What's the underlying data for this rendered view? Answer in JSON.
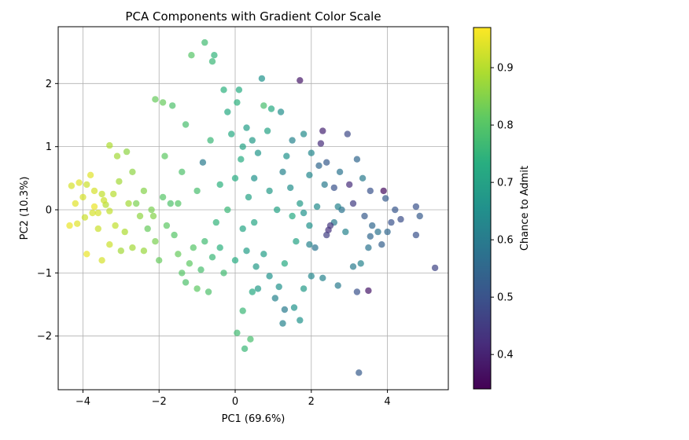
{
  "chart_data": {
    "type": "scatter",
    "title": "PCA Components with Gradient Color Scale",
    "xlabel": "PC1 (69.6%)",
    "ylabel": "PC2 (10.3%)",
    "xlim": [
      -4.65,
      5.6
    ],
    "ylim": [
      -2.85,
      2.9
    ],
    "xticks": [
      -4,
      -2,
      0,
      2,
      4
    ],
    "yticks": [
      -2,
      -1,
      0,
      1,
      2
    ],
    "grid": true,
    "colormap": "viridis",
    "marker_alpha": 0.7,
    "colorbar": {
      "label": "Chance to Admit",
      "range": [
        0.34,
        0.97
      ],
      "ticks": [
        0.4,
        0.5,
        0.6,
        0.7,
        0.8,
        0.9
      ]
    },
    "points": [
      [
        -4.3,
        0.38,
        0.93
      ],
      [
        -4.2,
        0.1,
        0.94
      ],
      [
        -4.1,
        0.43,
        0.94
      ],
      [
        -4.0,
        0.2,
        0.93
      ],
      [
        -3.9,
        0.4,
        0.92
      ],
      [
        -3.8,
        0.55,
        0.94
      ],
      [
        -3.7,
        0.3,
        0.93
      ],
      [
        -4.35,
        -0.25,
        0.95
      ],
      [
        -4.15,
        -0.22,
        0.94
      ],
      [
        -3.95,
        -0.12,
        0.92
      ],
      [
        -3.75,
        -0.05,
        0.93
      ],
      [
        -3.6,
        -0.3,
        0.92
      ],
      [
        -3.5,
        0.25,
        0.91
      ],
      [
        -3.4,
        0.08,
        0.9
      ],
      [
        -3.3,
        -0.02,
        0.91
      ],
      [
        -3.2,
        0.25,
        0.9
      ],
      [
        -3.05,
        0.45,
        0.88
      ],
      [
        -3.1,
        0.85,
        0.88
      ],
      [
        -3.3,
        1.02,
        0.89
      ],
      [
        -2.85,
        0.92,
        0.86
      ],
      [
        -2.9,
        -0.35,
        0.89
      ],
      [
        -3.0,
        -0.65,
        0.88
      ],
      [
        -3.3,
        -0.55,
        0.92
      ],
      [
        -3.5,
        -0.8,
        0.93
      ],
      [
        -3.9,
        -0.7,
        0.95
      ],
      [
        -2.7,
        -0.6,
        0.88
      ],
      [
        -2.5,
        -0.1,
        0.86
      ],
      [
        -2.4,
        0.3,
        0.85
      ],
      [
        -2.6,
        0.1,
        0.84
      ],
      [
        -2.3,
        -0.3,
        0.82
      ],
      [
        -2.2,
        0.0,
        0.84
      ],
      [
        -2.1,
        -0.5,
        0.84
      ],
      [
        -2.0,
        -0.8,
        0.82
      ],
      [
        -1.9,
        0.2,
        0.8
      ],
      [
        -1.8,
        -0.25,
        0.81
      ],
      [
        -1.7,
        0.1,
        0.79
      ],
      [
        -1.6,
        -0.4,
        0.8
      ],
      [
        -1.5,
        -0.7,
        0.82
      ],
      [
        -1.4,
        -1.0,
        0.8
      ],
      [
        -1.3,
        -1.15,
        0.79
      ],
      [
        -1.2,
        -0.85,
        0.81
      ],
      [
        -1.1,
        -0.6,
        0.8
      ],
      [
        -1.0,
        -1.25,
        0.81
      ],
      [
        -0.9,
        -0.95,
        0.78
      ],
      [
        -0.8,
        -0.5,
        0.77
      ],
      [
        -0.7,
        -1.3,
        0.79
      ],
      [
        -0.6,
        -0.75,
        0.76
      ],
      [
        -0.5,
        -0.2,
        0.75
      ],
      [
        -0.4,
        -0.6,
        0.74
      ],
      [
        -0.3,
        -1.0,
        0.77
      ],
      [
        -1.9,
        1.7,
        0.82
      ],
      [
        -1.65,
        1.65,
        0.79
      ],
      [
        -2.1,
        1.75,
        0.82
      ],
      [
        -1.3,
        1.35,
        0.78
      ],
      [
        -0.8,
        2.65,
        0.77
      ],
      [
        -1.15,
        2.45,
        0.8
      ],
      [
        -0.6,
        2.35,
        0.76
      ],
      [
        -0.55,
        2.45,
        0.75
      ],
      [
        -0.3,
        1.9,
        0.74
      ],
      [
        -0.2,
        1.55,
        0.72
      ],
      [
        0.05,
        1.7,
        0.74
      ],
      [
        0.1,
        1.9,
        0.73
      ],
      [
        -0.1,
        1.2,
        0.72
      ],
      [
        0.2,
        1.0,
        0.7
      ],
      [
        0.3,
        1.3,
        0.69
      ],
      [
        0.45,
        1.1,
        0.68
      ],
      [
        0.6,
        0.9,
        0.67
      ],
      [
        0.75,
        1.65,
        0.78
      ],
      [
        0.95,
        1.6,
        0.72
      ],
      [
        0.5,
        0.5,
        0.66
      ],
      [
        0.35,
        0.2,
        0.7
      ],
      [
        0.2,
        -0.3,
        0.71
      ],
      [
        0.0,
        -0.8,
        0.73
      ],
      [
        0.3,
        -0.65,
        0.69
      ],
      [
        0.55,
        -0.9,
        0.68
      ],
      [
        0.45,
        -1.3,
        0.72
      ],
      [
        0.2,
        -1.6,
        0.76
      ],
      [
        0.05,
        -1.95,
        0.77
      ],
      [
        0.4,
        -2.05,
        0.78
      ],
      [
        0.25,
        -2.2,
        0.76
      ],
      [
        0.7,
        2.08,
        0.66
      ],
      [
        1.7,
        2.05,
        0.38
      ],
      [
        1.2,
        1.55,
        0.65
      ],
      [
        1.5,
        1.1,
        0.62
      ],
      [
        1.8,
        1.2,
        0.64
      ],
      [
        2.0,
        0.9,
        0.63
      ],
      [
        1.25,
        0.6,
        0.62
      ],
      [
        1.45,
        0.35,
        0.65
      ],
      [
        1.7,
        0.1,
        0.68
      ],
      [
        1.95,
        -0.25,
        0.66
      ],
      [
        2.15,
        0.05,
        0.64
      ],
      [
        2.35,
        0.4,
        0.6
      ],
      [
        2.6,
        0.35,
        0.5
      ],
      [
        2.2,
        0.7,
        0.55
      ],
      [
        2.4,
        0.75,
        0.52
      ],
      [
        2.3,
        1.25,
        0.4
      ],
      [
        2.25,
        1.05,
        0.42
      ],
      [
        2.95,
        1.2,
        0.48
      ],
      [
        3.2,
        0.8,
        0.55
      ],
      [
        3.35,
        0.5,
        0.6
      ],
      [
        3.0,
        0.4,
        0.42
      ],
      [
        3.1,
        0.1,
        0.45
      ],
      [
        3.4,
        -0.1,
        0.52
      ],
      [
        3.6,
        -0.25,
        0.55
      ],
      [
        3.75,
        -0.35,
        0.58
      ],
      [
        3.9,
        0.3,
        0.36
      ],
      [
        3.95,
        0.18,
        0.52
      ],
      [
        4.1,
        -0.2,
        0.5
      ],
      [
        4.2,
        0.0,
        0.51
      ],
      [
        4.35,
        -0.15,
        0.49
      ],
      [
        4.75,
        0.05,
        0.5
      ],
      [
        4.85,
        -0.1,
        0.52
      ],
      [
        4.75,
        -0.4,
        0.5
      ],
      [
        5.25,
        -0.92,
        0.47
      ],
      [
        3.85,
        -0.55,
        0.53
      ],
      [
        3.5,
        -0.6,
        0.58
      ],
      [
        3.3,
        -0.85,
        0.62
      ],
      [
        3.1,
        -0.9,
        0.6
      ],
      [
        3.5,
        -1.28,
        0.38
      ],
      [
        3.2,
        -1.3,
        0.5
      ],
      [
        3.25,
        -2.58,
        0.52
      ],
      [
        2.7,
        -1.2,
        0.6
      ],
      [
        2.3,
        -1.08,
        0.62
      ],
      [
        2.0,
        -1.05,
        0.63
      ],
      [
        1.8,
        -1.25,
        0.68
      ],
      [
        1.55,
        -1.55,
        0.66
      ],
      [
        1.7,
        -1.75,
        0.66
      ],
      [
        1.3,
        -1.58,
        0.6
      ],
      [
        1.25,
        -1.8,
        0.62
      ],
      [
        1.15,
        -1.22,
        0.66
      ],
      [
        1.05,
        -1.4,
        0.62
      ],
      [
        0.9,
        -1.05,
        0.66
      ],
      [
        0.6,
        -1.25,
        0.68
      ],
      [
        0.75,
        -0.7,
        0.69
      ],
      [
        1.3,
        -0.85,
        0.72
      ],
      [
        1.6,
        -0.5,
        0.7
      ],
      [
        1.95,
        -0.55,
        0.62
      ],
      [
        2.1,
        -0.6,
        0.58
      ],
      [
        2.4,
        -0.4,
        0.46
      ],
      [
        2.6,
        -0.2,
        0.6
      ],
      [
        2.9,
        -0.35,
        0.62
      ],
      [
        2.5,
        -0.25,
        0.44
      ],
      [
        2.45,
        -0.32,
        0.43
      ],
      [
        2.8,
        0.0,
        0.58
      ],
      [
        3.55,
        -0.42,
        0.55
      ],
      [
        -1.5,
        0.1,
        0.8
      ],
      [
        -1.0,
        0.3,
        0.78
      ],
      [
        -0.4,
        0.4,
        0.74
      ],
      [
        0.0,
        0.5,
        0.73
      ],
      [
        0.9,
        0.3,
        0.68
      ],
      [
        1.1,
        0.0,
        0.7
      ],
      [
        1.5,
        -0.1,
        0.72
      ],
      [
        -0.2,
        0.0,
        0.76
      ],
      [
        0.5,
        -0.2,
        0.71
      ],
      [
        -2.7,
        0.6,
        0.86
      ],
      [
        -3.6,
        -0.05,
        0.93
      ],
      [
        -2.4,
        -0.65,
        0.87
      ],
      [
        -0.85,
        0.75,
        0.6
      ],
      [
        1.8,
        -0.05,
        0.66
      ],
      [
        2.7,
        0.05,
        0.62
      ],
      [
        -3.7,
        0.05,
        0.95
      ],
      [
        -3.45,
        0.15,
        0.92
      ],
      [
        -3.15,
        -0.25,
        0.91
      ],
      [
        -2.8,
        0.1,
        0.88
      ],
      [
        -2.15,
        -0.1,
        0.85
      ],
      [
        -1.85,
        0.85,
        0.81
      ],
      [
        -1.4,
        0.6,
        0.79
      ],
      [
        -0.65,
        1.1,
        0.76
      ],
      [
        0.15,
        0.8,
        0.73
      ],
      [
        0.85,
        1.25,
        0.7
      ],
      [
        1.35,
        0.85,
        0.66
      ],
      [
        1.95,
        0.55,
        0.63
      ],
      [
        2.75,
        0.6,
        0.58
      ],
      [
        3.55,
        0.3,
        0.5
      ],
      [
        4.0,
        -0.35,
        0.55
      ]
    ]
  }
}
